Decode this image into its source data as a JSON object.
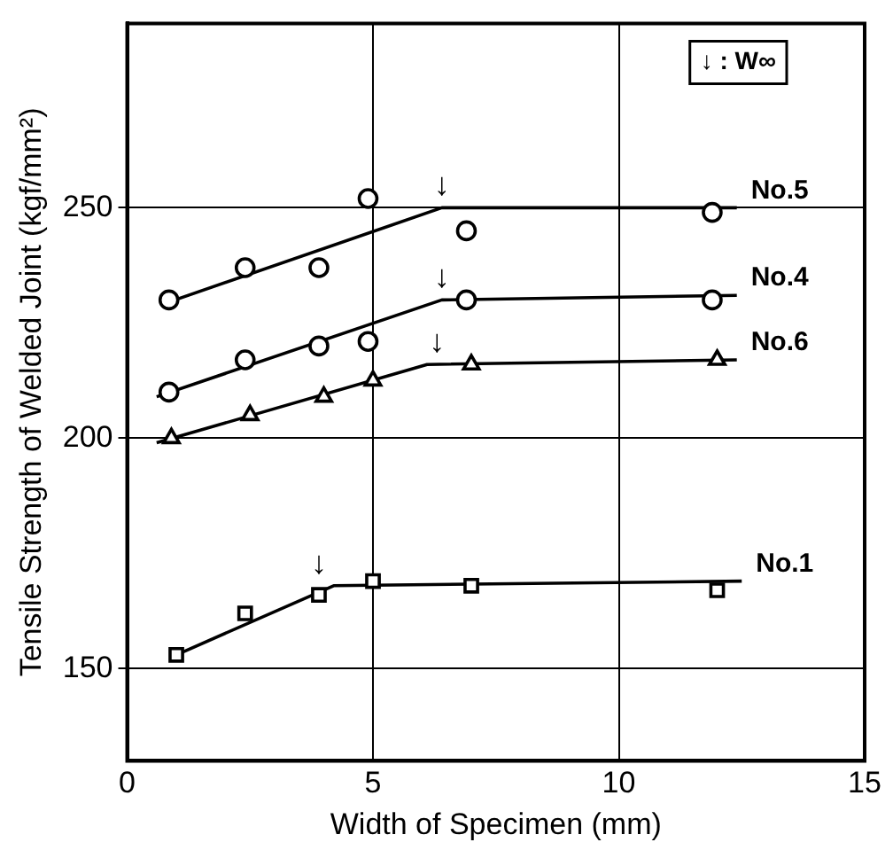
{
  "chart_data": {
    "type": "scatter",
    "xlabel": "Width of Specimen (mm)",
    "ylabel": "Tensile Strength of Welded Joint (kgf/mm²)",
    "xlim": [
      0,
      15
    ],
    "xticks": [
      0,
      5,
      10,
      15
    ],
    "ylim": [
      130,
      290
    ],
    "yticks": [
      150,
      200,
      250
    ],
    "grid": true,
    "legend": false,
    "series": [
      {
        "type": "scatter",
        "color": "#000000",
        "marker": "circle",
        "x": [
          0.85,
          2.4,
          3.9,
          4.9,
          6.9,
          11.9
        ],
        "values": [
          230,
          237,
          237,
          252,
          245,
          249
        ]
      },
      {
        "type": "line",
        "name": "No.5",
        "color": "#000000",
        "marker": "none",
        "x": [
          0.7,
          6.4,
          12.4
        ],
        "values": [
          229,
          250,
          250
        ]
      },
      {
        "type": "scatter",
        "color": "#000000",
        "marker": "circle",
        "x": [
          0.85,
          2.4,
          3.9,
          4.9,
          6.9,
          11.9
        ],
        "values": [
          210,
          217,
          220,
          221,
          230,
          230
        ]
      },
      {
        "type": "line",
        "name": "No.4",
        "color": "#000000",
        "marker": "none",
        "x": [
          0.6,
          6.4,
          12.4
        ],
        "values": [
          209,
          230,
          231
        ]
      },
      {
        "type": "scatter",
        "color": "#000000",
        "marker": "triangle",
        "x": [
          0.9,
          2.5,
          4,
          5,
          7,
          12
        ],
        "values": [
          200,
          205,
          209,
          212.5,
          216,
          217
        ]
      },
      {
        "type": "line",
        "name": "No.6",
        "color": "#000000",
        "marker": "none",
        "x": [
          0.6,
          6.1,
          12.4
        ],
        "values": [
          199,
          216,
          217
        ]
      },
      {
        "type": "scatter",
        "color": "#000000",
        "marker": "square",
        "x": [
          1,
          2.4,
          3.9,
          5,
          7,
          12
        ],
        "values": [
          153,
          162,
          166,
          169,
          168,
          167
        ]
      },
      {
        "type": "line",
        "name": "No.1",
        "color": "#000000",
        "marker": "none",
        "x": [
          1,
          4.2,
          12.5
        ],
        "values": [
          153,
          168,
          169
        ]
      }
    ],
    "annotations": [
      "↓ : W∞",
      {
        "text": "↓",
        "x": 6.4,
        "y": 250
      },
      {
        "text": "↓",
        "x": 6.4,
        "y": 230
      },
      {
        "text": "↓",
        "x": 6.3,
        "y": 216
      },
      {
        "text": "↓",
        "x": 3.9,
        "y": 168
      }
    ]
  }
}
